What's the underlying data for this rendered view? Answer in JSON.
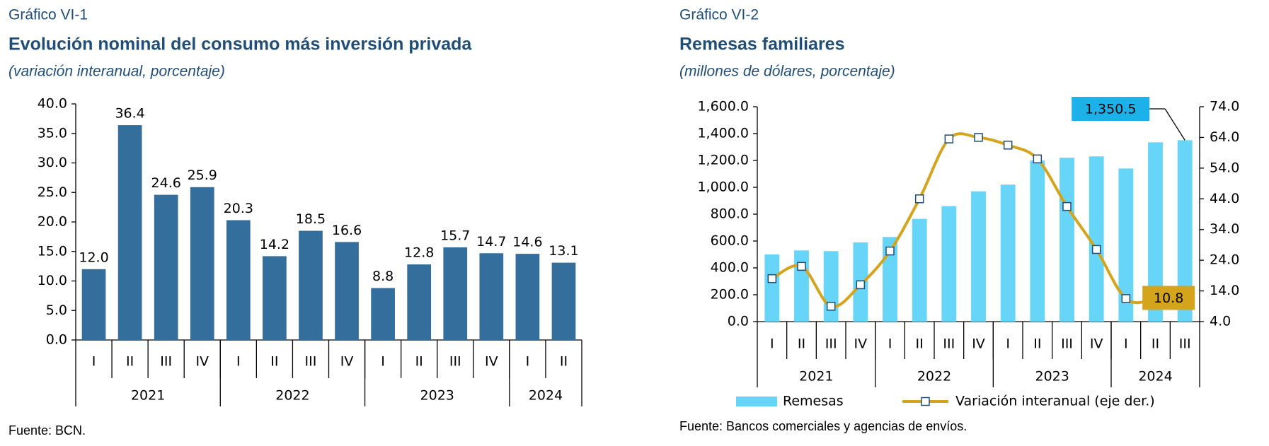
{
  "chart_data": [
    {
      "type": "bar",
      "label": "Gráfico VI-1",
      "title": "Evolución nominal del consumo más inversión privada",
      "subtitle": "(variación interanual, porcentaje)",
      "source": "Fuente: BCN.",
      "categories": [
        "I",
        "II",
        "III",
        "IV",
        "I",
        "II",
        "III",
        "IV",
        "I",
        "II",
        "III",
        "IV",
        "I",
        "II"
      ],
      "year_groups": [
        {
          "label": "2021",
          "span": 4
        },
        {
          "label": "2022",
          "span": 4
        },
        {
          "label": "2023",
          "span": 4
        },
        {
          "label": "2024",
          "span": 2
        }
      ],
      "values": [
        12.0,
        36.4,
        24.6,
        25.9,
        20.3,
        14.2,
        18.5,
        16.6,
        8.8,
        12.8,
        15.7,
        14.7,
        14.6,
        13.1
      ],
      "value_labels": [
        "12.0",
        "36.4",
        "24.6",
        "25.9",
        "20.3",
        "14.2",
        "18.5",
        "16.6",
        "8.8",
        "12.8",
        "15.7",
        "14.7",
        "14.6",
        "13.1"
      ],
      "color": "#336e9c",
      "ylim": [
        0,
        40
      ],
      "yticks": [
        {
          "value": 0,
          "label": "0.0"
        },
        {
          "value": 5,
          "label": "5.0"
        },
        {
          "value": 10,
          "label": "10.0"
        },
        {
          "value": 15,
          "label": "15.0"
        },
        {
          "value": 20,
          "label": "20.0"
        },
        {
          "value": 25,
          "label": "25.0"
        },
        {
          "value": 30,
          "label": "30.0"
        },
        {
          "value": 35,
          "label": "35.0"
        },
        {
          "value": 40,
          "label": "40.0"
        }
      ]
    },
    {
      "type": "combo",
      "label": "Gráfico VI-2",
      "title": "Remesas familiares",
      "subtitle": "(millones de dólares, porcentaje)",
      "source": "Fuente: Bancos comerciales y agencias de envíos.",
      "categories": [
        "I",
        "II",
        "III",
        "IV",
        "I",
        "II",
        "III",
        "IV",
        "I",
        "II",
        "III",
        "IV",
        "I",
        "II",
        "III"
      ],
      "year_groups": [
        {
          "label": "2021",
          "span": 4
        },
        {
          "label": "2022",
          "span": 4
        },
        {
          "label": "2023",
          "span": 4
        },
        {
          "label": "2024",
          "span": 3
        }
      ],
      "series": [
        {
          "name": "Remesas",
          "type": "bar",
          "color": "#66d5f7",
          "values": [
            500,
            530,
            525,
            590,
            630,
            765,
            860,
            970,
            1020,
            1200,
            1220,
            1230,
            1140,
            1335,
            1350.5
          ],
          "value_labels": [
            null,
            null,
            null,
            null,
            null,
            null,
            null,
            null,
            null,
            null,
            null,
            null,
            null,
            null,
            "1,350.5"
          ]
        },
        {
          "name": "Variación interanual (eje der.)",
          "type": "line",
          "axis": "y2",
          "color": "#d4a51c",
          "values": [
            18,
            22,
            9,
            16,
            27,
            44,
            63.5,
            64,
            61.5,
            57,
            41.5,
            27.5,
            11.5,
            11,
            10.8
          ],
          "value_labels": [
            null,
            null,
            null,
            null,
            null,
            null,
            null,
            null,
            null,
            null,
            null,
            null,
            null,
            null,
            "10.8"
          ]
        }
      ],
      "ylim": [
        0,
        1600
      ],
      "yticks": [
        {
          "value": 0,
          "label": "0.0"
        },
        {
          "value": 200,
          "label": "200.0"
        },
        {
          "value": 400,
          "label": "400.0"
        },
        {
          "value": 600,
          "label": "600.0"
        },
        {
          "value": 800,
          "label": "800.0"
        },
        {
          "value": 1000,
          "label": "1,000.0"
        },
        {
          "value": 1200,
          "label": "1,200.0"
        },
        {
          "value": 1400,
          "label": "1,400.0"
        },
        {
          "value": 1600,
          "label": "1,600.0"
        }
      ],
      "y2lim": [
        4,
        74
      ],
      "y2ticks": [
        {
          "value": 4,
          "label": "4.0"
        },
        {
          "value": 14,
          "label": "14.0"
        },
        {
          "value": 24,
          "label": "24.0"
        },
        {
          "value": 34,
          "label": "34.0"
        },
        {
          "value": 44,
          "label": "44.0"
        },
        {
          "value": 54,
          "label": "54.0"
        },
        {
          "value": 64,
          "label": "64.0"
        },
        {
          "value": 74,
          "label": "74.0"
        }
      ]
    }
  ]
}
